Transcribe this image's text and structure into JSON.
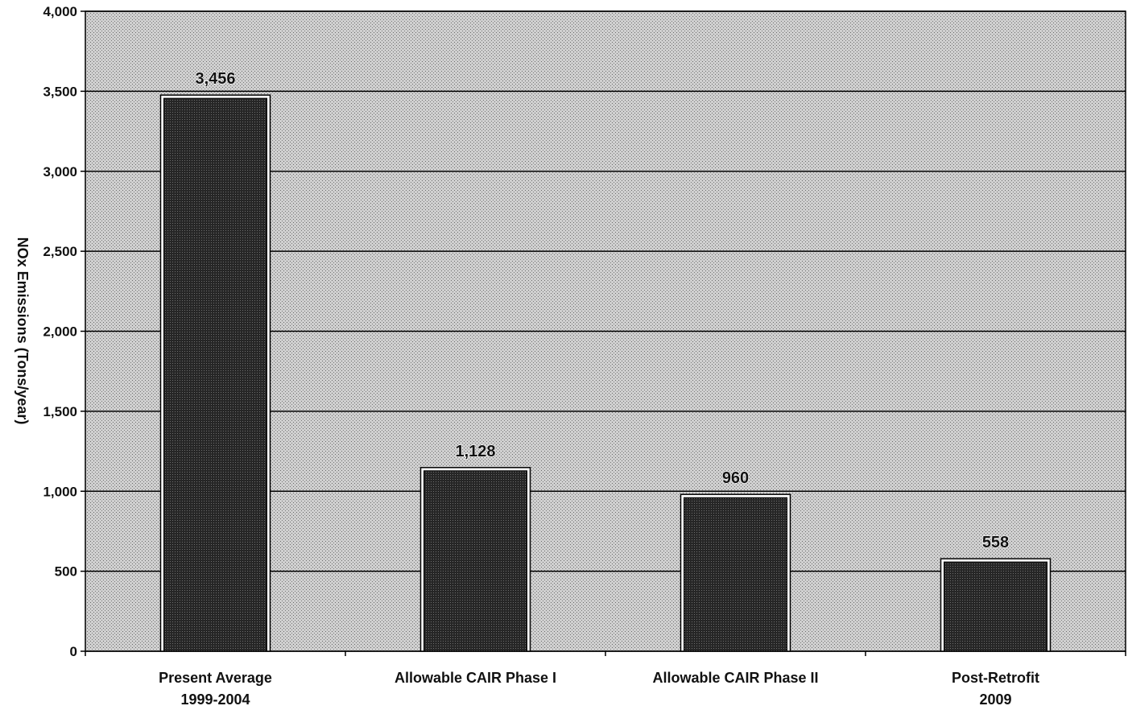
{
  "chart_data": {
    "type": "bar",
    "title": "",
    "xlabel": "",
    "ylabel": "NOx Emissions (Tons/year)",
    "ylim": [
      0,
      4000
    ],
    "yticks": [
      0,
      500,
      1000,
      1500,
      2000,
      2500,
      3000,
      3500,
      4000
    ],
    "ytick_labels": [
      "0",
      "500",
      "1,000",
      "1,500",
      "2,000",
      "2,500",
      "3,000",
      "3,500",
      "4,000"
    ],
    "categories": [
      [
        "Present Average",
        "1999-2004"
      ],
      [
        "Allowable CAIR Phase I"
      ],
      [
        "Allowable CAIR Phase II"
      ],
      [
        "Post-Retrofit",
        "2009"
      ]
    ],
    "values": [
      3456,
      1128,
      960,
      558
    ],
    "data_labels": [
      "3,456",
      "1,128",
      "960",
      "558"
    ],
    "grid": true,
    "colors": {
      "bar": "#2b2b2b",
      "plot_background": "#c4c4c4",
      "grid": "#000000"
    }
  }
}
